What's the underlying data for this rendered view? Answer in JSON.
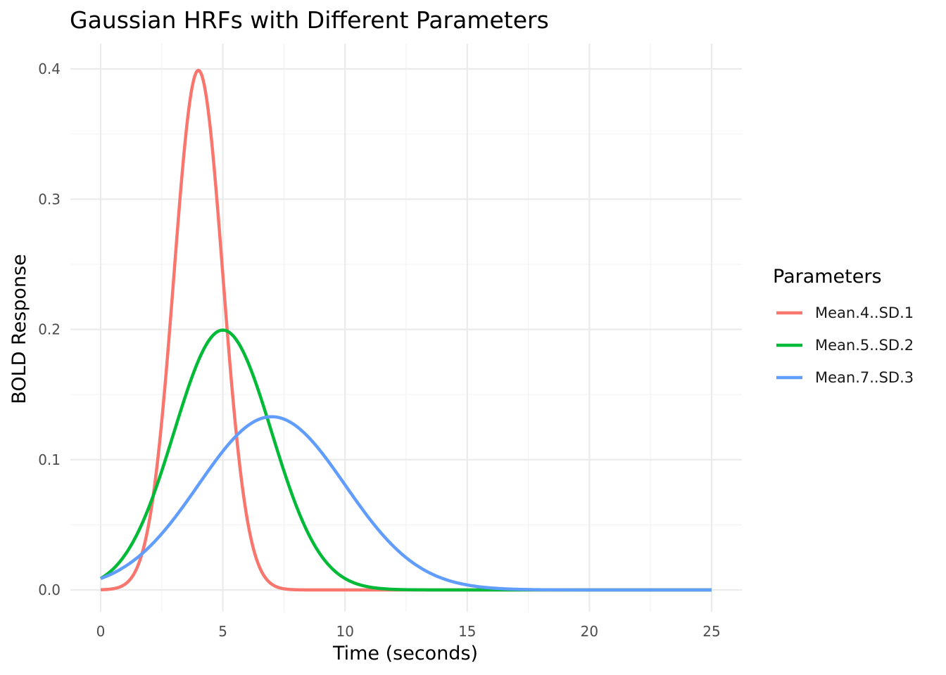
{
  "chart_data": {
    "type": "line",
    "title": "Gaussian HRFs with Different Parameters",
    "xlabel": "Time (seconds)",
    "ylabel": "BOLD Response",
    "xlim": [
      0,
      25
    ],
    "ylim": [
      0,
      0.4
    ],
    "x_ticks": [
      0,
      5,
      10,
      15,
      20,
      25
    ],
    "x_tick_labels": [
      "0",
      "5",
      "10",
      "15",
      "20",
      "25"
    ],
    "y_ticks": [
      0.0,
      0.1,
      0.2,
      0.3,
      0.4
    ],
    "y_tick_labels": [
      "0.0",
      "0.1",
      "0.2",
      "0.3",
      "0.4"
    ],
    "grid": true,
    "legend": {
      "title": "Parameters",
      "position": "right"
    },
    "series": [
      {
        "name": "Mean.4..SD.1",
        "color": "#F8766D",
        "mean": 4,
        "sd": 1,
        "x": [
          0,
          0.5,
          1,
          1.5,
          2,
          2.5,
          3,
          3.5,
          4,
          4.5,
          5,
          5.5,
          6,
          6.5,
          7,
          7.5,
          8,
          9,
          10,
          12,
          15,
          20,
          25
        ],
        "y": [
          0.0001,
          0.0009,
          0.0044,
          0.0175,
          0.054,
          0.1295,
          0.242,
          0.3521,
          0.3989,
          0.3521,
          0.242,
          0.1295,
          0.054,
          0.0175,
          0.0044,
          0.0009,
          0.0001,
          0.0,
          0.0,
          0.0,
          0.0,
          0.0,
          0.0
        ]
      },
      {
        "name": "Mean.5..SD.2",
        "color": "#00BA38",
        "mean": 5,
        "sd": 2,
        "x": [
          0,
          1,
          2,
          3,
          4,
          5,
          6,
          7,
          8,
          9,
          10,
          11,
          12,
          13,
          14,
          15,
          17,
          20,
          25
        ],
        "y": [
          0.0088,
          0.027,
          0.0648,
          0.121,
          0.176,
          0.1995,
          0.176,
          0.121,
          0.0648,
          0.027,
          0.0088,
          0.0022,
          0.0004,
          0.0001,
          0.0,
          0.0,
          0.0,
          0.0,
          0.0
        ]
      },
      {
        "name": "Mean.7..SD.3",
        "color": "#619CFF",
        "mean": 7,
        "sd": 3,
        "x": [
          0,
          1,
          2,
          3,
          4,
          5,
          6,
          7,
          8,
          9,
          10,
          11,
          12,
          13,
          14,
          15,
          16,
          17,
          18,
          19,
          20,
          22,
          25
        ],
        "y": [
          0.0088,
          0.018,
          0.0332,
          0.0547,
          0.0807,
          0.1065,
          0.1258,
          0.133,
          0.1258,
          0.1065,
          0.0807,
          0.0547,
          0.0332,
          0.018,
          0.0088,
          0.0038,
          0.0015,
          0.0005,
          0.0002,
          0.0,
          0.0,
          0.0,
          0.0
        ]
      }
    ]
  }
}
